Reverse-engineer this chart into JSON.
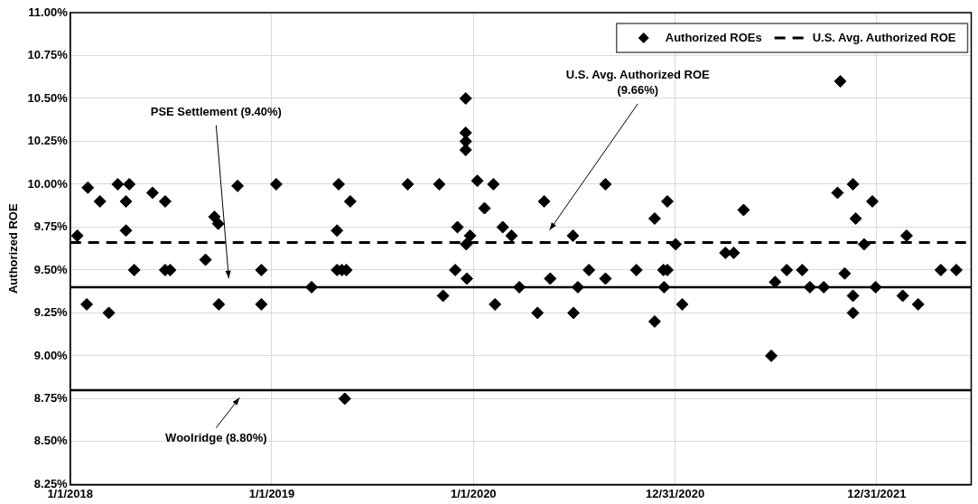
{
  "chart_data": {
    "type": "scatter",
    "ylabel": "Authorized ROE",
    "xlim": [
      "2018-01-01",
      "2022-06-20"
    ],
    "xticks": [
      {
        "value": "2018-01-01",
        "label": "1/1/2018"
      },
      {
        "value": "2019-01-01",
        "label": "1/1/2019"
      },
      {
        "value": "2020-01-01",
        "label": "1/1/2020"
      },
      {
        "value": "2020-12-31",
        "label": "12/31/2020"
      },
      {
        "value": "2021-12-31",
        "label": "12/31/2021"
      }
    ],
    "ylim": [
      8.25,
      11
    ],
    "yticks": [
      {
        "value": 8.25,
        "label": "8.25%"
      },
      {
        "value": 8.5,
        "label": "8.50%"
      },
      {
        "value": 8.75,
        "label": "8.75%"
      },
      {
        "value": 9,
        "label": "9.00%"
      },
      {
        "value": 9.25,
        "label": "9.25%"
      },
      {
        "value": 9.5,
        "label": "9.50%"
      },
      {
        "value": 9.75,
        "label": "9.75%"
      },
      {
        "value": 10,
        "label": "10.00%"
      },
      {
        "value": 10.25,
        "label": "10.25%"
      },
      {
        "value": 10.5,
        "label": "10.50%"
      },
      {
        "value": 10.75,
        "label": "10.75%"
      },
      {
        "value": 11,
        "label": "11.00%"
      }
    ],
    "grid": true,
    "legend": "top right",
    "marker": "diamond",
    "series": [
      {
        "name": "Authorized ROEs",
        "color": "#000000",
        "x": [
          "2018-01-14",
          "2018-01-31",
          "2018-02-02",
          "2018-02-24",
          "2018-03-12",
          "2018-03-28",
          "2018-04-12",
          "2018-04-12",
          "2018-04-18",
          "2018-04-27",
          "2018-05-30",
          "2018-06-22",
          "2018-06-22",
          "2018-07-01",
          "2018-09-03",
          "2018-09-19",
          "2018-09-26",
          "2018-09-27",
          "2018-10-31",
          "2018-12-13",
          "2018-12-13",
          "2019-01-09",
          "2019-03-14",
          "2019-04-29",
          "2019-04-29",
          "2019-05-02",
          "2019-05-08",
          "2019-05-13",
          "2019-05-16",
          "2019-05-23",
          "2019-09-04",
          "2019-10-31",
          "2019-11-07",
          "2019-11-29",
          "2019-12-03",
          "2019-12-18",
          "2019-12-18",
          "2019-12-18",
          "2019-12-18",
          "2019-12-19",
          "2019-12-20",
          "2019-12-26",
          "2020-01-08",
          "2020-01-21",
          "2020-02-06",
          "2020-02-09",
          "2020-02-23",
          "2020-03-10",
          "2020-03-24",
          "2020-04-26",
          "2020-05-08",
          "2020-05-19",
          "2020-06-29",
          "2020-06-30",
          "2020-07-08",
          "2020-07-28",
          "2020-08-27",
          "2020-08-27",
          "2020-10-22",
          "2020-11-24",
          "2020-11-24",
          "2020-12-10",
          "2020-12-11",
          "2020-12-17",
          "2020-12-17",
          "2021-01-01",
          "2021-01-13",
          "2021-04-01",
          "2021-04-16",
          "2021-05-04",
          "2021-06-23",
          "2021-06-30",
          "2021-07-21",
          "2021-08-18",
          "2021-09-01",
          "2021-09-26",
          "2021-10-21",
          "2021-10-26",
          "2021-11-03",
          "2021-11-18",
          "2021-11-18",
          "2021-11-18",
          "2021-11-23",
          "2021-12-08",
          "2021-12-23",
          "2021-12-29",
          "2022-02-16",
          "2022-02-23",
          "2022-03-16",
          "2022-04-26",
          "2022-05-24"
        ],
        "values": [
          9.7,
          9.3,
          9.98,
          9.9,
          9.25,
          10.0,
          9.9,
          9.73,
          10.0,
          9.5,
          9.95,
          9.9,
          9.5,
          9.5,
          9.56,
          9.81,
          9.77,
          9.3,
          9.99,
          9.5,
          9.3,
          10.0,
          9.4,
          9.73,
          9.5,
          10.0,
          9.5,
          8.75,
          9.5,
          9.9,
          10.0,
          10.0,
          9.35,
          9.5,
          9.75,
          10.5,
          10.3,
          10.25,
          10.2,
          9.65,
          9.45,
          9.7,
          10.02,
          9.86,
          10.0,
          9.3,
          9.75,
          9.7,
          9.4,
          9.25,
          9.9,
          9.45,
          9.7,
          9.25,
          9.4,
          9.5,
          10.0,
          9.45,
          9.5,
          9.8,
          9.2,
          9.5,
          9.4,
          9.9,
          9.5,
          9.65,
          9.3,
          9.6,
          9.6,
          9.85,
          9.0,
          9.43,
          9.5,
          9.5,
          9.4,
          9.4,
          9.95,
          10.6,
          9.48,
          10.0,
          9.35,
          9.25,
          9.8,
          9.65,
          9.9,
          9.4,
          9.35,
          9.7,
          9.3,
          9.5,
          9.5
        ]
      },
      {
        "name": "U.S. Avg. Authorized ROE",
        "type": "line",
        "color": "#000000",
        "line_style": "dashed",
        "marker": "none",
        "x": [
          "2018-01-01",
          "2022-06-20"
        ],
        "values": [
          9.66,
          9.66
        ]
      }
    ],
    "ref_lines": [
      {
        "axis": "y",
        "value": 9.4,
        "color": "#000000",
        "line_style": "solid"
      },
      {
        "axis": "y",
        "value": 8.8,
        "color": "#000000",
        "line_style": "solid"
      }
    ],
    "annotations": [
      "PSE Settlement (9.40%)",
      "U.S. Avg. Authorized ROE\n(9.66%)",
      "Woolridge (8.80%)"
    ]
  }
}
